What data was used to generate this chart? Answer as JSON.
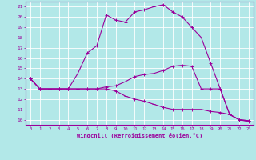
{
  "xlabel": "Windchill (Refroidissement éolien,°C)",
  "line_color": "#9b009b",
  "bg_color": "#b2e8e8",
  "grid_color": "#ffffff",
  "line1": [
    14,
    13,
    13,
    13,
    13,
    14.5,
    16.5,
    17.2,
    20.2,
    19.7,
    19.5,
    20.5,
    20.7,
    21.0,
    21.2,
    20.5,
    20.0,
    19.0,
    18.0,
    15.5,
    13.0,
    10.5,
    10.0,
    9.9
  ],
  "line2": [
    14,
    13,
    13,
    13,
    13,
    13,
    13,
    13,
    13.2,
    13.3,
    13.7,
    14.2,
    14.4,
    14.5,
    14.8,
    15.2,
    15.3,
    15.2,
    13.0,
    13.0,
    13.0,
    10.5,
    10.0,
    9.9
  ],
  "line3": [
    14,
    13,
    13,
    13,
    13,
    13,
    13,
    13,
    13,
    12.8,
    12.3,
    12.0,
    11.8,
    11.5,
    11.2,
    11.0,
    11.0,
    11.0,
    11.0,
    10.8,
    10.7,
    10.5,
    10.0,
    9.8
  ],
  "x": [
    0,
    1,
    2,
    3,
    4,
    5,
    6,
    7,
    8,
    9,
    10,
    11,
    12,
    13,
    14,
    15,
    16,
    17,
    18,
    19,
    20,
    21,
    22,
    23
  ],
  "ylim": [
    9.5,
    21.5
  ],
  "xlim": [
    -0.5,
    23.5
  ],
  "yticks": [
    10,
    11,
    12,
    13,
    14,
    15,
    16,
    17,
    18,
    19,
    20,
    21
  ],
  "xticks": [
    0,
    1,
    2,
    3,
    4,
    5,
    6,
    7,
    8,
    9,
    10,
    11,
    12,
    13,
    14,
    15,
    16,
    17,
    18,
    19,
    20,
    21,
    22,
    23
  ],
  "linewidth": 0.8,
  "markersize": 2.2
}
